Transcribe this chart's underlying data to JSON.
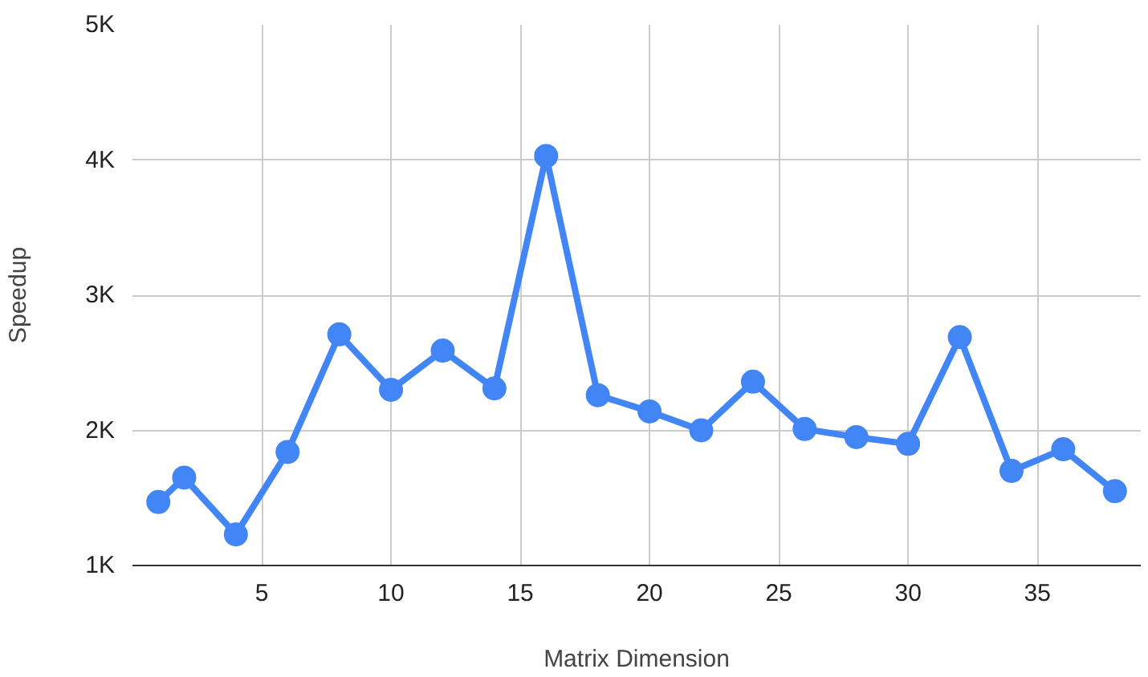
{
  "chart_data": {
    "type": "line",
    "xlabel": "Matrix Dimension",
    "ylabel": "Speedup",
    "x": [
      1,
      2,
      4,
      6,
      8,
      10,
      12,
      14,
      16,
      18,
      20,
      22,
      24,
      26,
      28,
      30,
      32,
      34,
      36,
      38
    ],
    "series": [
      {
        "color": "#4285f4",
        "values": [
          1470,
          1650,
          1230,
          1840,
          2710,
          2300,
          2590,
          2310,
          4030,
          2260,
          2140,
          2000,
          2360,
          2010,
          1950,
          1900,
          2690,
          1700,
          1860,
          1550
        ]
      }
    ],
    "xlim": [
      0,
      39
    ],
    "xticks": [
      5,
      10,
      15,
      20,
      25,
      30,
      35
    ],
    "ylim": [
      1000,
      5000
    ],
    "yticks": [
      {
        "value": 1000,
        "label": "1K"
      },
      {
        "value": 2000,
        "label": "2K"
      },
      {
        "value": 3000,
        "label": "3K"
      },
      {
        "value": 4000,
        "label": "4K"
      },
      {
        "value": 5000,
        "label": "5K"
      }
    ],
    "grid": true,
    "marker": "circle",
    "line_style": "solid"
  }
}
